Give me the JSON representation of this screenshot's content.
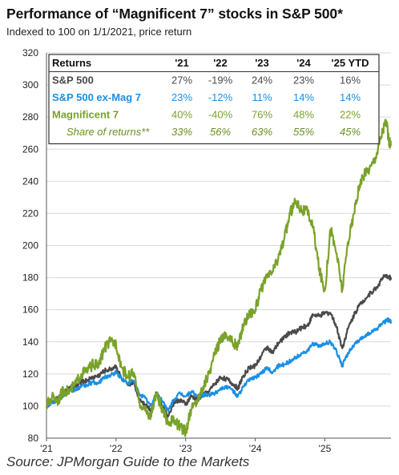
{
  "title": "Performance of “Magnificent 7” stocks in S&P 500*",
  "subtitle": "Indexed to 100 on 1/1/2021, price return",
  "source": "Source: JPMorgan Guide to the Markets",
  "colors": {
    "sp500": "#4a4a4a",
    "sp500_ex_mag7": "#1a8fe6",
    "mag7": "#7aa22b",
    "share_text": "#6b8f23",
    "grid": "#d9d9d9"
  },
  "table": {
    "columns": [
      "Returns",
      "'21",
      "'22",
      "'23",
      "'24",
      "'25 YTD"
    ],
    "rows": [
      {
        "label": "S&P 500",
        "values": [
          "27%",
          "-19%",
          "24%",
          "23%",
          "16%"
        ],
        "style": "sp500"
      },
      {
        "label": "S&P 500 ex-Mag 7",
        "values": [
          "23%",
          "-12%",
          "11%",
          "14%",
          "14%"
        ],
        "style": "sp500_ex_mag7"
      },
      {
        "label": "Magnificent 7",
        "values": [
          "40%",
          "-40%",
          "76%",
          "48%",
          "22%"
        ],
        "style": "mag7"
      },
      {
        "label": "Share of returns**",
        "values": [
          "33%",
          "56%",
          "63%",
          "55%",
          "45%"
        ],
        "style": "share"
      }
    ]
  },
  "chart_data": {
    "type": "line",
    "xlabel": "",
    "ylabel": "",
    "ylim": [
      80,
      320
    ],
    "yticks": [
      80,
      100,
      120,
      140,
      160,
      180,
      200,
      220,
      240,
      260,
      280,
      300,
      320
    ],
    "xlim": [
      2021.0,
      2025.95
    ],
    "xticks": [
      {
        "value": 2021.0,
        "label": "'21"
      },
      {
        "value": 2022.0,
        "label": "'22"
      },
      {
        "value": 2023.0,
        "label": "'23"
      },
      {
        "value": 2024.0,
        "label": "'24"
      },
      {
        "value": 2025.0,
        "label": "'25"
      }
    ],
    "grid": true,
    "series": [
      {
        "name": "S&P 500",
        "color_key": "sp500",
        "points": [
          [
            2021.0,
            100
          ],
          [
            2021.08,
            103
          ],
          [
            2021.17,
            105
          ],
          [
            2021.25,
            108
          ],
          [
            2021.33,
            111
          ],
          [
            2021.42,
            112
          ],
          [
            2021.5,
            115
          ],
          [
            2021.58,
            116
          ],
          [
            2021.67,
            118
          ],
          [
            2021.75,
            119
          ],
          [
            2021.83,
            122
          ],
          [
            2021.92,
            123
          ],
          [
            2022.0,
            125
          ],
          [
            2022.08,
            117
          ],
          [
            2022.17,
            113
          ],
          [
            2022.25,
            115
          ],
          [
            2022.33,
            105
          ],
          [
            2022.42,
            101
          ],
          [
            2022.5,
            98
          ],
          [
            2022.58,
            108
          ],
          [
            2022.67,
            100
          ],
          [
            2022.75,
            94
          ],
          [
            2022.83,
            102
          ],
          [
            2022.92,
            104
          ],
          [
            2023.0,
            101
          ],
          [
            2023.08,
            106
          ],
          [
            2023.17,
            104
          ],
          [
            2023.25,
            107
          ],
          [
            2023.33,
            109
          ],
          [
            2023.42,
            114
          ],
          [
            2023.5,
            118
          ],
          [
            2023.58,
            117
          ],
          [
            2023.67,
            114
          ],
          [
            2023.75,
            111
          ],
          [
            2023.83,
            119
          ],
          [
            2023.92,
            124
          ],
          [
            2024.0,
            125
          ],
          [
            2024.08,
            131
          ],
          [
            2024.17,
            137
          ],
          [
            2024.25,
            133
          ],
          [
            2024.33,
            139
          ],
          [
            2024.42,
            143
          ],
          [
            2024.5,
            146
          ],
          [
            2024.58,
            146
          ],
          [
            2024.67,
            149
          ],
          [
            2024.75,
            150
          ],
          [
            2024.83,
            157
          ],
          [
            2024.92,
            156
          ],
          [
            2025.0,
            158
          ],
          [
            2025.08,
            158
          ],
          [
            2025.17,
            149
          ],
          [
            2025.25,
            136
          ],
          [
            2025.33,
            148
          ],
          [
            2025.42,
            157
          ],
          [
            2025.5,
            163
          ],
          [
            2025.58,
            167
          ],
          [
            2025.67,
            171
          ],
          [
            2025.75,
            174
          ],
          [
            2025.83,
            180
          ],
          [
            2025.92,
            181
          ],
          [
            2025.95,
            179
          ]
        ]
      },
      {
        "name": "S&P 500 ex-Mag 7",
        "color_key": "sp500_ex_mag7",
        "points": [
          [
            2021.0,
            100
          ],
          [
            2021.08,
            102
          ],
          [
            2021.17,
            104
          ],
          [
            2021.25,
            107
          ],
          [
            2021.33,
            110
          ],
          [
            2021.42,
            110
          ],
          [
            2021.5,
            112
          ],
          [
            2021.58,
            113
          ],
          [
            2021.67,
            115
          ],
          [
            2021.75,
            114
          ],
          [
            2021.83,
            118
          ],
          [
            2021.92,
            119
          ],
          [
            2022.0,
            121
          ],
          [
            2022.08,
            117
          ],
          [
            2022.17,
            114
          ],
          [
            2022.25,
            116
          ],
          [
            2022.33,
            108
          ],
          [
            2022.42,
            105
          ],
          [
            2022.5,
            100
          ],
          [
            2022.58,
            108
          ],
          [
            2022.67,
            103
          ],
          [
            2022.75,
            97
          ],
          [
            2022.83,
            104
          ],
          [
            2022.92,
            108
          ],
          [
            2023.0,
            106
          ],
          [
            2023.08,
            109
          ],
          [
            2023.17,
            106
          ],
          [
            2023.25,
            107
          ],
          [
            2023.33,
            107
          ],
          [
            2023.42,
            108
          ],
          [
            2023.5,
            111
          ],
          [
            2023.58,
            112
          ],
          [
            2023.67,
            110
          ],
          [
            2023.75,
            106
          ],
          [
            2023.83,
            112
          ],
          [
            2023.92,
            117
          ],
          [
            2024.0,
            118
          ],
          [
            2024.08,
            120
          ],
          [
            2024.17,
            124
          ],
          [
            2024.25,
            121
          ],
          [
            2024.33,
            125
          ],
          [
            2024.42,
            126
          ],
          [
            2024.5,
            128
          ],
          [
            2024.58,
            130
          ],
          [
            2024.67,
            133
          ],
          [
            2024.75,
            134
          ],
          [
            2024.83,
            139
          ],
          [
            2024.92,
            137
          ],
          [
            2025.0,
            139
          ],
          [
            2025.08,
            140
          ],
          [
            2025.17,
            134
          ],
          [
            2025.25,
            125
          ],
          [
            2025.33,
            133
          ],
          [
            2025.42,
            138
          ],
          [
            2025.5,
            141
          ],
          [
            2025.58,
            144
          ],
          [
            2025.67,
            146
          ],
          [
            2025.75,
            148
          ],
          [
            2025.83,
            152
          ],
          [
            2025.92,
            154
          ],
          [
            2025.95,
            152
          ]
        ]
      },
      {
        "name": "Magnificent 7",
        "color_key": "mag7",
        "points": [
          [
            2021.0,
            100
          ],
          [
            2021.08,
            106
          ],
          [
            2021.17,
            104
          ],
          [
            2021.25,
            110
          ],
          [
            2021.33,
            109
          ],
          [
            2021.42,
            114
          ],
          [
            2021.5,
            120
          ],
          [
            2021.58,
            122
          ],
          [
            2021.67,
            126
          ],
          [
            2021.75,
            125
          ],
          [
            2021.83,
            136
          ],
          [
            2021.92,
            140
          ],
          [
            2022.0,
            139
          ],
          [
            2022.08,
            124
          ],
          [
            2022.17,
            118
          ],
          [
            2022.25,
            121
          ],
          [
            2022.33,
            103
          ],
          [
            2022.42,
            97
          ],
          [
            2022.5,
            94
          ],
          [
            2022.58,
            108
          ],
          [
            2022.67,
            96
          ],
          [
            2022.75,
            90
          ],
          [
            2022.83,
            91
          ],
          [
            2022.92,
            87
          ],
          [
            2023.0,
            84
          ],
          [
            2023.08,
            98
          ],
          [
            2023.17,
            104
          ],
          [
            2023.25,
            112
          ],
          [
            2023.33,
            120
          ],
          [
            2023.42,
            132
          ],
          [
            2023.5,
            142
          ],
          [
            2023.58,
            145
          ],
          [
            2023.67,
            140
          ],
          [
            2023.75,
            137
          ],
          [
            2023.83,
            151
          ],
          [
            2023.92,
            158
          ],
          [
            2024.0,
            160
          ],
          [
            2024.08,
            172
          ],
          [
            2024.17,
            180
          ],
          [
            2024.25,
            184
          ],
          [
            2024.33,
            192
          ],
          [
            2024.42,
            205
          ],
          [
            2024.5,
            220
          ],
          [
            2024.58,
            228
          ],
          [
            2024.67,
            222
          ],
          [
            2024.75,
            221
          ],
          [
            2024.83,
            212
          ],
          [
            2024.92,
            185
          ],
          [
            2025.0,
            172
          ],
          [
            2025.08,
            210
          ],
          [
            2025.17,
            195
          ],
          [
            2025.25,
            172
          ],
          [
            2025.33,
            202
          ],
          [
            2025.42,
            220
          ],
          [
            2025.5,
            238
          ],
          [
            2025.58,
            245
          ],
          [
            2025.67,
            250
          ],
          [
            2025.75,
            258
          ],
          [
            2025.83,
            272
          ],
          [
            2025.88,
            278
          ],
          [
            2025.92,
            265
          ],
          [
            2025.95,
            262
          ]
        ]
      }
    ]
  }
}
